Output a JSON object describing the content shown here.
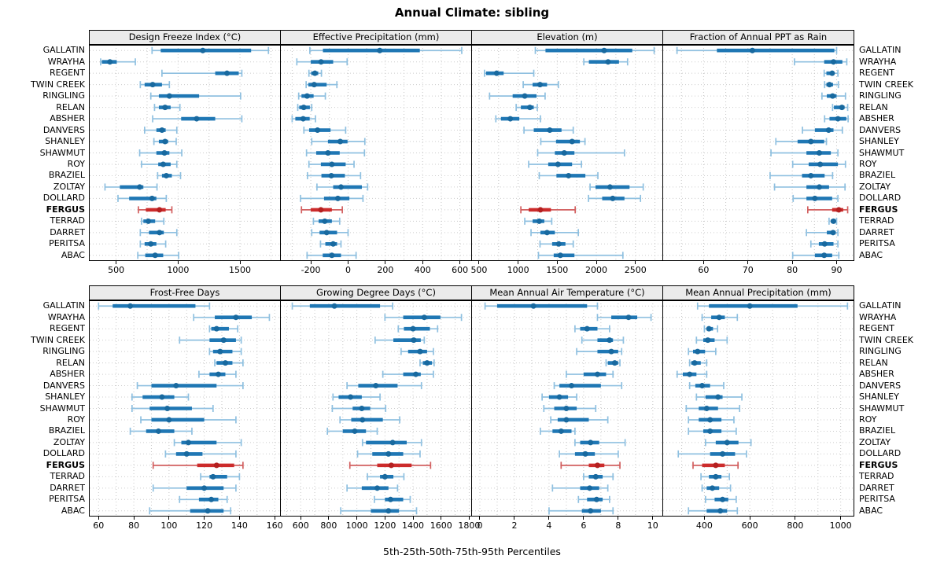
{
  "title": "Annual Climate: sibling",
  "footer": "5th-25th-50th-75th-95th Percentiles",
  "highlight_station": "FERGUS",
  "colors": {
    "normal": "#1f77b4",
    "normal_whisker": "#8fc0e0",
    "normal_dot": "#18699f",
    "highlight": "#cc2b2b",
    "highlight_whisker": "#d25f5f",
    "highlight_dot": "#b42020"
  },
  "stations": [
    "GALLATIN",
    "WRAYHA",
    "REGENT",
    "TWIN CREEK",
    "RINGLING",
    "RELAN",
    "ABSHER",
    "DANVERS",
    "SHANLEY",
    "SHAWMUT",
    "ROY",
    "BRAZIEL",
    "ZOLTAY",
    "DOLLARD",
    "FERGUS",
    "TERRAD",
    "DARRET",
    "PERITSA",
    "ABAC"
  ],
  "chart_data": {
    "type": "percentile_dotplot",
    "percentiles": [
      5,
      25,
      50,
      75,
      95
    ],
    "layout": {
      "rows": 2,
      "cols": 4
    },
    "panels": [
      {
        "title": "Design Freeze Index (°C)",
        "xlim": [
          280,
          1830
        ],
        "tick_labels": [
          500,
          1000,
          1500
        ],
        "grid_step": 250,
        "values": [
          [
            790,
            860,
            1200,
            1590,
            1730
          ],
          [
            375,
            385,
            450,
            505,
            655
          ],
          [
            870,
            1300,
            1395,
            1490,
            1515
          ],
          [
            695,
            730,
            795,
            870,
            930
          ],
          [
            780,
            845,
            930,
            1170,
            1505
          ],
          [
            810,
            845,
            895,
            940,
            1015
          ],
          [
            795,
            1025,
            1150,
            1300,
            1515
          ],
          [
            730,
            825,
            870,
            900,
            990
          ],
          [
            805,
            845,
            895,
            920,
            985
          ],
          [
            690,
            825,
            890,
            930,
            1030
          ],
          [
            705,
            840,
            880,
            940,
            990
          ],
          [
            835,
            870,
            905,
            950,
            1020
          ],
          [
            410,
            530,
            690,
            720,
            830
          ],
          [
            515,
            605,
            790,
            825,
            905
          ],
          [
            680,
            740,
            850,
            900,
            950
          ],
          [
            705,
            720,
            760,
            815,
            885
          ],
          [
            695,
            765,
            850,
            885,
            990
          ],
          [
            695,
            730,
            780,
            825,
            900
          ],
          [
            675,
            735,
            815,
            880,
            1005
          ]
        ]
      },
      {
        "title": "Effective Precipitation (mm)",
        "xlim": [
          -365,
          665
        ],
        "tick_labels": [
          -200,
          0,
          200,
          400,
          600
        ],
        "grid_step": 100,
        "values": [
          [
            -205,
            -135,
            170,
            385,
            610
          ],
          [
            -275,
            -200,
            -145,
            -80,
            -5
          ],
          [
            -210,
            -198,
            -178,
            -160,
            -143
          ],
          [
            -225,
            -213,
            -182,
            -115,
            -60
          ],
          [
            -265,
            -250,
            -220,
            -185,
            -122
          ],
          [
            -270,
            -262,
            -238,
            -205,
            -195
          ],
          [
            -300,
            -283,
            -241,
            -206,
            -175
          ],
          [
            -237,
            -209,
            -164,
            -94,
            -13
          ],
          [
            -195,
            -108,
            -42,
            -3,
            90
          ],
          [
            -223,
            -171,
            -108,
            -45,
            88
          ],
          [
            -210,
            -146,
            -87,
            -13,
            32
          ],
          [
            -218,
            -143,
            -90,
            -17,
            67
          ],
          [
            -167,
            -80,
            -38,
            74,
            105
          ],
          [
            -255,
            -129,
            -55,
            7,
            80
          ],
          [
            -250,
            -200,
            -146,
            -87,
            -31
          ],
          [
            -186,
            -158,
            -125,
            -87,
            -45
          ],
          [
            -195,
            -153,
            -115,
            -59,
            0
          ],
          [
            -148,
            -122,
            -80,
            -59,
            -38
          ],
          [
            -220,
            -136,
            -87,
            -38,
            43
          ]
        ]
      },
      {
        "title": "Elevation (m)",
        "xlim": [
          400,
          2855
        ],
        "tick_labels": [
          500,
          1000,
          1500,
          2000,
          2500
        ],
        "grid_step": 250,
        "values": [
          [
            1220,
            1350,
            2100,
            2460,
            2740
          ],
          [
            1840,
            1905,
            2150,
            2290,
            2400
          ],
          [
            570,
            590,
            725,
            815,
            1200
          ],
          [
            1065,
            1185,
            1280,
            1370,
            1515
          ],
          [
            635,
            930,
            1085,
            1235,
            1345
          ],
          [
            975,
            1035,
            1150,
            1200,
            1245
          ],
          [
            715,
            780,
            900,
            1015,
            1285
          ],
          [
            1075,
            1200,
            1405,
            1555,
            1705
          ],
          [
            1290,
            1485,
            1690,
            1790,
            1855
          ],
          [
            1250,
            1470,
            1590,
            1720,
            2360
          ],
          [
            1135,
            1385,
            1510,
            1690,
            1810
          ],
          [
            1270,
            1490,
            1645,
            1860,
            2020
          ],
          [
            1920,
            1990,
            2175,
            2425,
            2600
          ],
          [
            1900,
            2075,
            2210,
            2360,
            2565
          ],
          [
            1035,
            1135,
            1285,
            1420,
            1730
          ],
          [
            1085,
            1185,
            1270,
            1335,
            1430
          ],
          [
            1165,
            1285,
            1370,
            1470,
            1770
          ],
          [
            1280,
            1435,
            1520,
            1605,
            1705
          ],
          [
            1260,
            1455,
            1540,
            1720,
            2340
          ]
        ]
      },
      {
        "title": "Fraction of Annual PPT as Rain",
        "xlim": [
          50.7,
          94
        ],
        "tick_labels": [
          60,
          70,
          80,
          90
        ],
        "grid_step": 5,
        "values": [
          [
            54,
            63,
            71,
            89.5,
            90
          ],
          [
            80.5,
            87.2,
            89.3,
            91.3,
            92.3
          ],
          [
            87.2,
            87.7,
            89,
            89.5,
            90.3
          ],
          [
            87.3,
            87.7,
            88.4,
            89.2,
            90.4
          ],
          [
            86.7,
            87.8,
            89.1,
            90,
            92
          ],
          [
            89.1,
            89.4,
            91.2,
            91.8,
            92.5
          ],
          [
            87.3,
            88.4,
            90.3,
            92.2,
            92.6
          ],
          [
            82.3,
            85.1,
            88.2,
            89.3,
            91.3
          ],
          [
            76.3,
            81.2,
            84.2,
            87.2,
            87.7
          ],
          [
            75.2,
            83.2,
            86.1,
            88.7,
            90.3
          ],
          [
            80.1,
            83.7,
            86.3,
            90.3,
            92
          ],
          [
            75,
            82.2,
            84.2,
            87.3,
            89.1
          ],
          [
            76,
            83.2,
            86.1,
            88.3,
            91.9
          ],
          [
            80.2,
            83.2,
            85.1,
            89,
            90.3
          ],
          [
            83.5,
            89,
            90.5,
            91.5,
            92.5
          ],
          [
            88.3,
            88.7,
            89.3,
            89.8,
            90
          ],
          [
            83.2,
            87.8,
            89.2,
            89.8,
            90.3
          ],
          [
            84.2,
            86,
            87.3,
            89.3,
            90.3
          ],
          [
            80.1,
            85.1,
            87.2,
            89,
            90.5
          ]
        ]
      },
      {
        "title": "Frost-Free Days",
        "xlim": [
          54.5,
          163.5
        ],
        "tick_labels": [
          60,
          80,
          100,
          120,
          140,
          160
        ],
        "grid_step": 10,
        "values": [
          [
            60,
            68,
            78,
            115,
            123
          ],
          [
            114,
            126,
            138,
            147,
            157
          ],
          [
            123,
            124,
            127,
            134,
            139
          ],
          [
            106,
            123,
            131,
            138,
            141
          ],
          [
            123,
            125,
            129,
            136,
            141
          ],
          [
            126,
            127,
            132,
            136,
            142
          ],
          [
            117,
            123,
            128,
            132,
            138
          ],
          [
            82,
            90,
            104,
            127,
            142
          ],
          [
            79,
            85,
            96,
            103,
            111
          ],
          [
            79,
            89,
            99,
            113,
            125
          ],
          [
            84,
            90,
            100,
            120,
            138
          ],
          [
            78,
            87,
            94,
            103,
            113
          ],
          [
            103,
            107,
            111,
            127,
            141
          ],
          [
            98,
            104,
            110,
            119,
            138
          ],
          [
            91,
            116,
            127,
            137,
            142
          ],
          [
            118,
            123,
            125,
            133,
            140
          ],
          [
            91,
            110,
            120,
            131,
            138
          ],
          [
            106,
            117,
            124,
            128,
            133
          ],
          [
            89,
            112,
            122,
            131,
            135
          ]
        ]
      },
      {
        "title": "Growing Degree Days (°C)",
        "xlim": [
          453,
          1820
        ],
        "tick_labels": [
          600,
          800,
          1000,
          1200,
          1400,
          1600,
          1800
        ],
        "grid_step": 100,
        "values": [
          [
            540,
            665,
            840,
            1165,
            1255
          ],
          [
            1200,
            1330,
            1480,
            1595,
            1745
          ],
          [
            1295,
            1335,
            1400,
            1520,
            1575
          ],
          [
            1130,
            1260,
            1405,
            1455,
            1480
          ],
          [
            1315,
            1365,
            1450,
            1500,
            1545
          ],
          [
            1450,
            1470,
            1500,
            1535,
            1550
          ],
          [
            1185,
            1330,
            1420,
            1455,
            1545
          ],
          [
            930,
            1010,
            1135,
            1290,
            1460
          ],
          [
            830,
            870,
            955,
            1035,
            1165
          ],
          [
            825,
            970,
            1035,
            1095,
            1205
          ],
          [
            880,
            960,
            1040,
            1185,
            1305
          ],
          [
            790,
            900,
            985,
            1065,
            1145
          ],
          [
            1040,
            1065,
            1255,
            1355,
            1460
          ],
          [
            1005,
            1110,
            1225,
            1330,
            1450
          ],
          [
            950,
            1145,
            1245,
            1390,
            1525
          ],
          [
            1075,
            1165,
            1200,
            1260,
            1335
          ],
          [
            930,
            1035,
            1145,
            1225,
            1290
          ],
          [
            1125,
            1200,
            1240,
            1330,
            1380
          ],
          [
            885,
            1100,
            1225,
            1300,
            1425
          ]
        ]
      },
      {
        "title": "Mean Annual Air Temperature (°C)",
        "xlim": [
          -0.5,
          10.6
        ],
        "tick_labels": [
          0,
          2,
          4,
          6,
          8,
          10
        ],
        "grid_step": 1,
        "values": [
          [
            0.3,
            1.0,
            3.1,
            6.2,
            6.8
          ],
          [
            6.8,
            7.6,
            8.6,
            9.1,
            9.9
          ],
          [
            5.5,
            5.8,
            6.2,
            6.8,
            7.5
          ],
          [
            5.9,
            6.8,
            7.5,
            7.7,
            8.3
          ],
          [
            5.6,
            6.8,
            7.6,
            8.0,
            8.2
          ],
          [
            7.3,
            7.4,
            7.8,
            8.0,
            8.1
          ],
          [
            5.0,
            6.0,
            6.8,
            7.3,
            7.7
          ],
          [
            4.3,
            4.6,
            5.3,
            7.0,
            8.2
          ],
          [
            3.6,
            4.0,
            4.6,
            5.1,
            5.6
          ],
          [
            3.7,
            4.3,
            5.0,
            5.6,
            6.7
          ],
          [
            4.1,
            4.5,
            5.0,
            6.3,
            7.4
          ],
          [
            3.5,
            4.2,
            4.7,
            5.3,
            5.5
          ],
          [
            5.5,
            5.8,
            6.4,
            6.9,
            8.4
          ],
          [
            4.6,
            5.5,
            6.1,
            6.65,
            8.0
          ],
          [
            4.7,
            6.3,
            6.8,
            7.2,
            8.1
          ],
          [
            6.0,
            6.3,
            6.7,
            7.1,
            7.7
          ],
          [
            4.2,
            5.8,
            6.35,
            6.9,
            7.4
          ],
          [
            5.7,
            6.2,
            6.75,
            7.1,
            7.5
          ],
          [
            4.0,
            5.9,
            6.4,
            7.0,
            7.7
          ]
        ]
      },
      {
        "title": "Mean Annual Precipitation (mm)",
        "xlim": [
          215,
          1060
        ],
        "tick_labels": [
          400,
          600,
          800,
          1000
        ],
        "grid_step": 100,
        "values": [
          [
            370,
            420,
            600,
            810,
            1030
          ],
          [
            390,
            430,
            465,
            490,
            545
          ],
          [
            400,
            410,
            420,
            438,
            458
          ],
          [
            365,
            395,
            415,
            445,
            500
          ],
          [
            330,
            350,
            370,
            403,
            450
          ],
          [
            335,
            342,
            357,
            384,
            410
          ],
          [
            280,
            305,
            335,
            365,
            410
          ],
          [
            335,
            360,
            390,
            425,
            485
          ],
          [
            365,
            405,
            460,
            480,
            565
          ],
          [
            320,
            375,
            410,
            460,
            555
          ],
          [
            330,
            375,
            425,
            475,
            530
          ],
          [
            330,
            395,
            425,
            475,
            540
          ],
          [
            405,
            450,
            500,
            550,
            605
          ],
          [
            285,
            425,
            480,
            535,
            585
          ],
          [
            350,
            390,
            450,
            490,
            548
          ],
          [
            385,
            420,
            450,
            475,
            510
          ],
          [
            390,
            410,
            435,
            465,
            515
          ],
          [
            405,
            445,
            480,
            505,
            540
          ],
          [
            330,
            410,
            470,
            500,
            545
          ]
        ]
      }
    ]
  }
}
